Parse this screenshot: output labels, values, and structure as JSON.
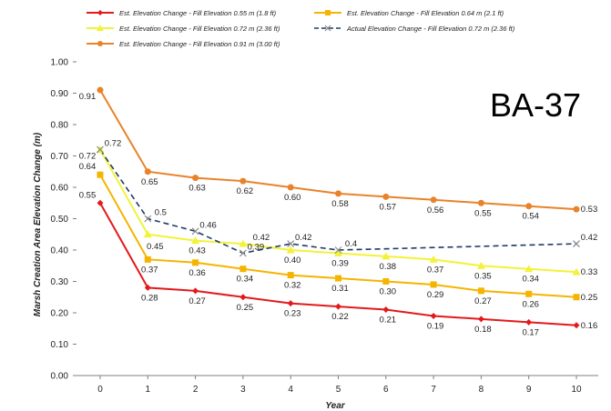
{
  "chart_data": {
    "type": "line",
    "annotation": "BA-37",
    "xlabel": "Year",
    "ylabel": "Marsh Creation Area Elevation Change (m)",
    "x": [
      0,
      1,
      2,
      3,
      4,
      5,
      6,
      7,
      8,
      9,
      10
    ],
    "xlim": [
      0,
      10
    ],
    "ylim": [
      0,
      1
    ],
    "yticks": [
      "0.00",
      "0.10",
      "0.20",
      "0.30",
      "0.40",
      "0.50",
      "0.60",
      "0.70",
      "0.80",
      "0.90",
      "1.00"
    ],
    "grid": false,
    "legend_position": "top",
    "series": [
      {
        "name": "Est. Elevation Change - Fill Elevation 0.55 m (1.8 ft)",
        "color": "#e31a1c",
        "marker": "diamond",
        "dashed": false,
        "values": [
          0.55,
          0.28,
          0.27,
          0.25,
          0.23,
          0.22,
          0.21,
          0.19,
          0.18,
          0.17,
          0.16
        ],
        "labels": [
          "0.55",
          "0.28",
          "0.27",
          "0.25",
          "0.23",
          "0.22",
          "0.21",
          "0.19",
          "0.18",
          "0.17",
          "0.16"
        ]
      },
      {
        "name": "Est. Elevation Change - Fill Elevation 0.64 m (2.1 ft)",
        "color": "#f5b400",
        "marker": "square",
        "dashed": false,
        "values": [
          0.64,
          0.37,
          0.36,
          0.34,
          0.32,
          0.31,
          0.3,
          0.29,
          0.27,
          0.26,
          0.25
        ],
        "labels": [
          "0.64",
          "0.37",
          "0.36",
          "0.34",
          "0.32",
          "0.31",
          "0.30",
          "0.29",
          "0.27",
          "0.26",
          "0.25"
        ]
      },
      {
        "name": "Est. Elevation Change - Fill Elevation 0.72 m (2.36 ft)",
        "color": "#f2f23a",
        "marker": "triangle",
        "dashed": false,
        "values": [
          0.72,
          0.45,
          0.43,
          0.42,
          0.4,
          0.39,
          0.38,
          0.37,
          0.35,
          0.34,
          0.33
        ],
        "labels": [
          "0.72",
          "0.45",
          "0.43",
          "0.42",
          "0.40",
          "0.39",
          "0.38",
          "0.37",
          "0.35",
          "0.34",
          "0.33"
        ]
      },
      {
        "name": "Actual Elevation Change - Fill Elevation 0.72 m (2.36 ft)",
        "color": "#1f3a68",
        "marker": "x",
        "dashed": true,
        "x": [
          0,
          1,
          2,
          3,
          4,
          5,
          10
        ],
        "values": [
          0.72,
          0.5,
          0.46,
          0.39,
          0.42,
          0.4,
          0.42
        ],
        "labels": [
          "0.72",
          "0.5",
          "0.46",
          "0.39",
          "0.42",
          "0.4",
          "0.42"
        ]
      },
      {
        "name": "Est. Elevation Change - Fill Elevation 0.91 m (3.00 ft)",
        "color": "#e8832a",
        "marker": "circle",
        "dashed": false,
        "values": [
          0.91,
          0.65,
          0.63,
          0.62,
          0.6,
          0.58,
          0.57,
          0.56,
          0.55,
          0.54,
          0.53
        ],
        "labels": [
          "0.91",
          "0.65",
          "0.63",
          "0.62",
          "0.60",
          "0.58",
          "0.57",
          "0.56",
          "0.55",
          "0.54",
          "0.53"
        ]
      }
    ]
  }
}
